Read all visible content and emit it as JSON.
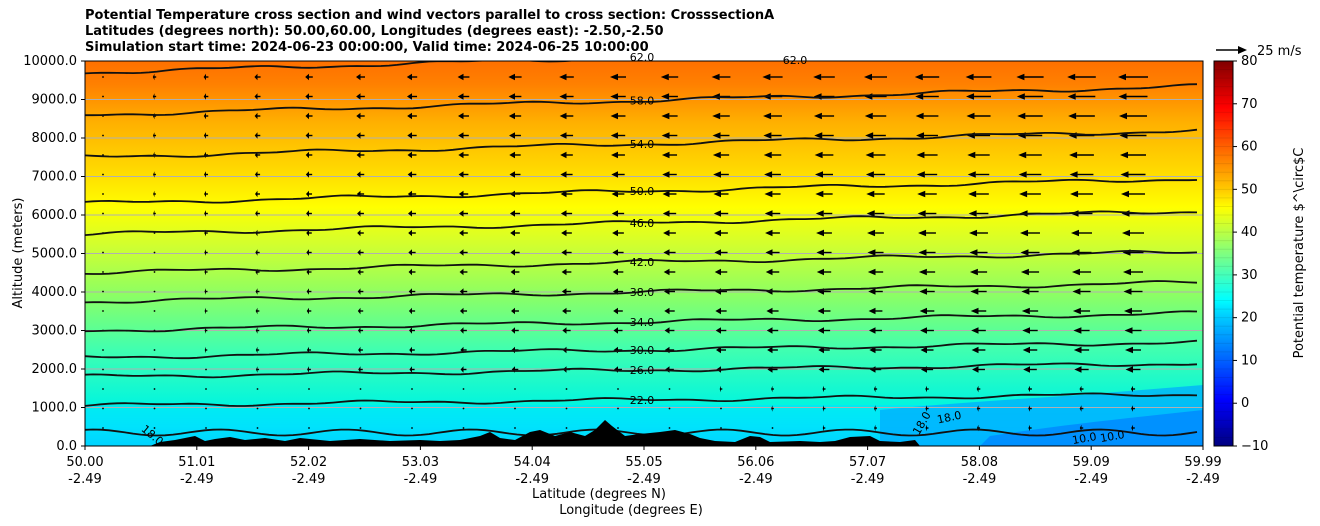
{
  "chart_data": {
    "type": "contour",
    "title_lines": [
      "Potential Temperature cross section and wind vectors parallel to cross section: CrosssectionA",
      "Latitudes (degrees north): 50.00,60.00, Longitudes (degrees east): -2.50,-2.50",
      "Simulation start time: 2024-06-23 00:00:00, Valid time: 2024-06-25 10:00:00"
    ],
    "ylabel": "Altitude (meters)",
    "xlabel_lat": "Latitude (degrees N)",
    "xlabel_lon": "Longitude (degrees E)",
    "ylim": [
      0,
      10000
    ],
    "y_ticks": [
      "0.0",
      "1000.0",
      "2000.0",
      "3000.0",
      "4000.0",
      "5000.0",
      "6000.0",
      "7000.0",
      "8000.0",
      "9000.0",
      "10000.0"
    ],
    "x_ticks_lat": [
      "50.00",
      "51.01",
      "52.02",
      "53.03",
      "54.04",
      "55.05",
      "56.06",
      "57.07",
      "58.08",
      "59.09",
      "59.99"
    ],
    "x_ticks_lon": [
      "-2.49",
      "-2.49",
      "-2.49",
      "-2.49",
      "-2.49",
      "-2.49",
      "-2.49",
      "-2.49",
      "-2.49",
      "-2.49",
      "-2.49"
    ],
    "colorbar": {
      "label": "Potential temperature $^\\circ$C",
      "range": [
        -10,
        80
      ],
      "ticks": [
        "−10",
        "0",
        "10",
        "20",
        "30",
        "40",
        "50",
        "60",
        "70",
        "80"
      ],
      "colormap": "jet"
    },
    "quiver_key": "25 m/s",
    "contour_levels": [
      {
        "value": "18.0",
        "y": 350
      },
      {
        "value": "22.0",
        "y": 1050
      },
      {
        "value": "26.0",
        "y": 1800
      },
      {
        "value": "30.0",
        "y": 2300
      },
      {
        "value": "34.0",
        "y": 3000
      },
      {
        "value": "38.0",
        "y": 3750
      },
      {
        "value": "42.0",
        "y": 4500
      },
      {
        "value": "46.0",
        "y": 5500
      },
      {
        "value": "50.0",
        "y": 6300
      },
      {
        "value": "54.0",
        "y": 7500
      },
      {
        "value": "58.0",
        "y": 8600
      },
      {
        "value": "62.0",
        "y": 9700
      }
    ],
    "labels_extra": [
      "18.0",
      "18.0",
      "18.0",
      "10.0",
      "10.0",
      "62.0"
    ],
    "grid": true
  }
}
